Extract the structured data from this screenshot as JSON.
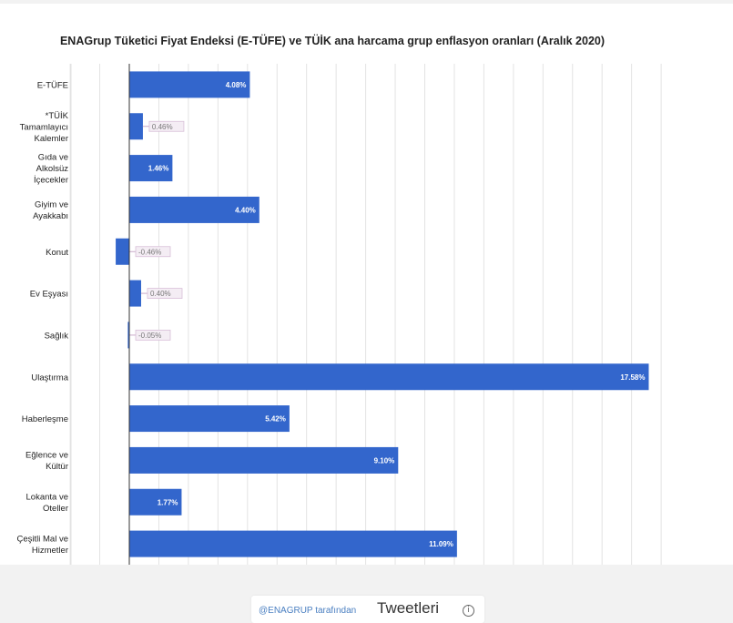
{
  "chart_data": {
    "type": "bar",
    "orientation": "horizontal",
    "title": "ENAGrup Tüketici Fiyat Endeksi (E-TÜFE) ve TÜİK ana harcama grup enflasyon oranları (Aralık 2020)",
    "xlim": [
      -2,
      18
    ],
    "categories": [
      [
        "E-TÜFE"
      ],
      [
        "*TÜİK",
        "Tamamlayıcı",
        "Kalemler"
      ],
      [
        "Gıda ve",
        "Alkolsüz",
        "İçecekler"
      ],
      [
        "Giyim ve",
        "Ayakkabı"
      ],
      [
        "Konut"
      ],
      [
        "Ev Eşyası"
      ],
      [
        "Sağlık"
      ],
      [
        "Ulaştırma"
      ],
      [
        "Haberleşme"
      ],
      [
        "Eğlence ve",
        "Kültür"
      ],
      [
        "Lokanta ve",
        "Oteller"
      ],
      [
        "Çeşitli Mal ve",
        "Hizmetler"
      ]
    ],
    "values": [
      4.08,
      0.46,
      1.46,
      4.4,
      -0.46,
      0.4,
      -0.05,
      17.58,
      5.42,
      9.1,
      1.77,
      11.09
    ],
    "labels": [
      "4.08%",
      "0.46%",
      "1.46%",
      "4.40%",
      "-0.46%",
      "0.40%",
      "-0.05%",
      "17.58%",
      "5.42%",
      "9.10%",
      "1.77%",
      "11.09%"
    ],
    "bar_color": "#3366cc",
    "grid": true
  },
  "footer_widget": {
    "handle": "@ENAGRUP tarafından",
    "title": "Tweetleri",
    "info_symbol": "i"
  }
}
